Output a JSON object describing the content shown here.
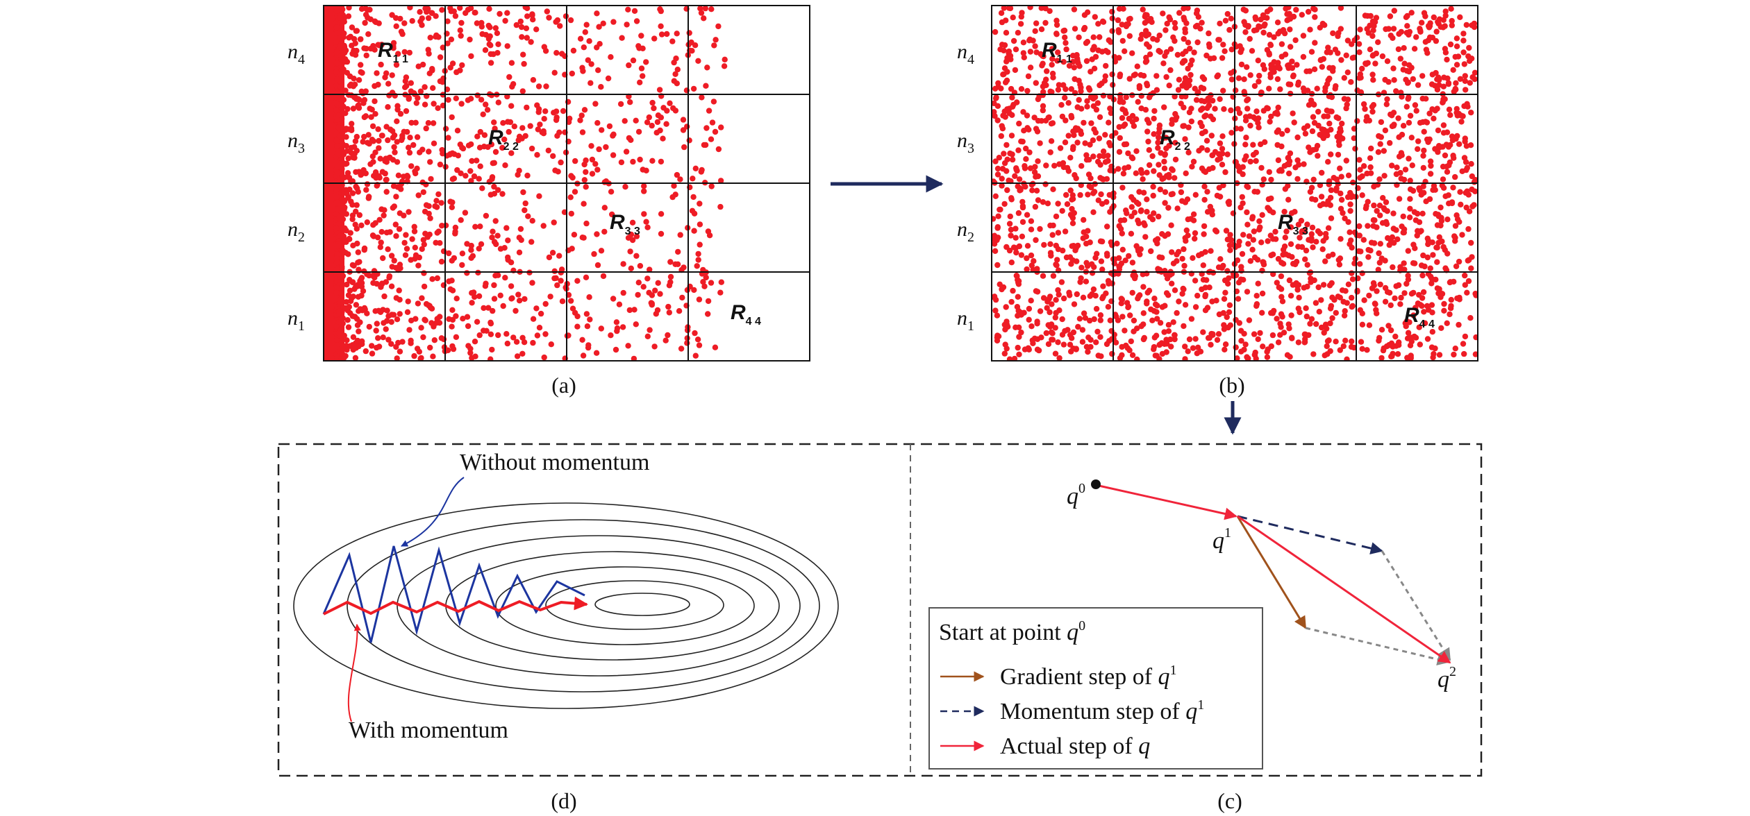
{
  "panels": {
    "a": {
      "caption": "(a)",
      "row_labels": [
        {
          "base": "n",
          "sub": "4"
        },
        {
          "base": "n",
          "sub": "3"
        },
        {
          "base": "n",
          "sub": "2"
        },
        {
          "base": "n",
          "sub": "1"
        }
      ],
      "region_labels": [
        {
          "base": "R",
          "sub": "1 1"
        },
        {
          "base": "R",
          "sub": "2 2"
        },
        {
          "base": "R",
          "sub": "3 3"
        },
        {
          "base": "R",
          "sub": "4 4"
        }
      ],
      "point_distribution": "concentrated-left"
    },
    "b": {
      "caption": "(b)",
      "row_labels": [
        {
          "base": "n",
          "sub": "4"
        },
        {
          "base": "n",
          "sub": "3"
        },
        {
          "base": "n",
          "sub": "2"
        },
        {
          "base": "n",
          "sub": "1"
        }
      ],
      "region_labels": [
        {
          "base": "R",
          "sub": "1 1"
        },
        {
          "base": "R",
          "sub": "2 2"
        },
        {
          "base": "R",
          "sub": "3 3"
        },
        {
          "base": "R",
          "sub": "4 4"
        }
      ],
      "point_distribution": "uniform"
    },
    "c": {
      "caption": "(c)",
      "points": [
        {
          "base": "q",
          "sup": "0"
        },
        {
          "base": "q",
          "sup": "1"
        },
        {
          "base": "q",
          "sup": "2"
        }
      ],
      "legend": {
        "title": {
          "text": "Start at point ",
          "var": "q",
          "sup": "0"
        },
        "items": [
          {
            "text": "Gradient step of ",
            "var": "q",
            "sup": "1"
          },
          {
            "text": "Momentum step of ",
            "var": "q",
            "sup": "1"
          },
          {
            "text": "Actual step of ",
            "var": "q",
            "sup": ""
          }
        ]
      }
    },
    "d": {
      "caption": "(d)",
      "label_without": "Without momentum",
      "label_with": "With momentum"
    }
  },
  "colors": {
    "points": "#ee1c25",
    "grid": "#111111",
    "nav_arrow": "#1f2b5e",
    "gradient": "#a0521c",
    "momentum": "#1f2b5e",
    "actual": "#f0243a",
    "helper": "#888888",
    "without_path": "#1c35a0",
    "with_path": "#ee1c25",
    "contour": "#222222"
  }
}
